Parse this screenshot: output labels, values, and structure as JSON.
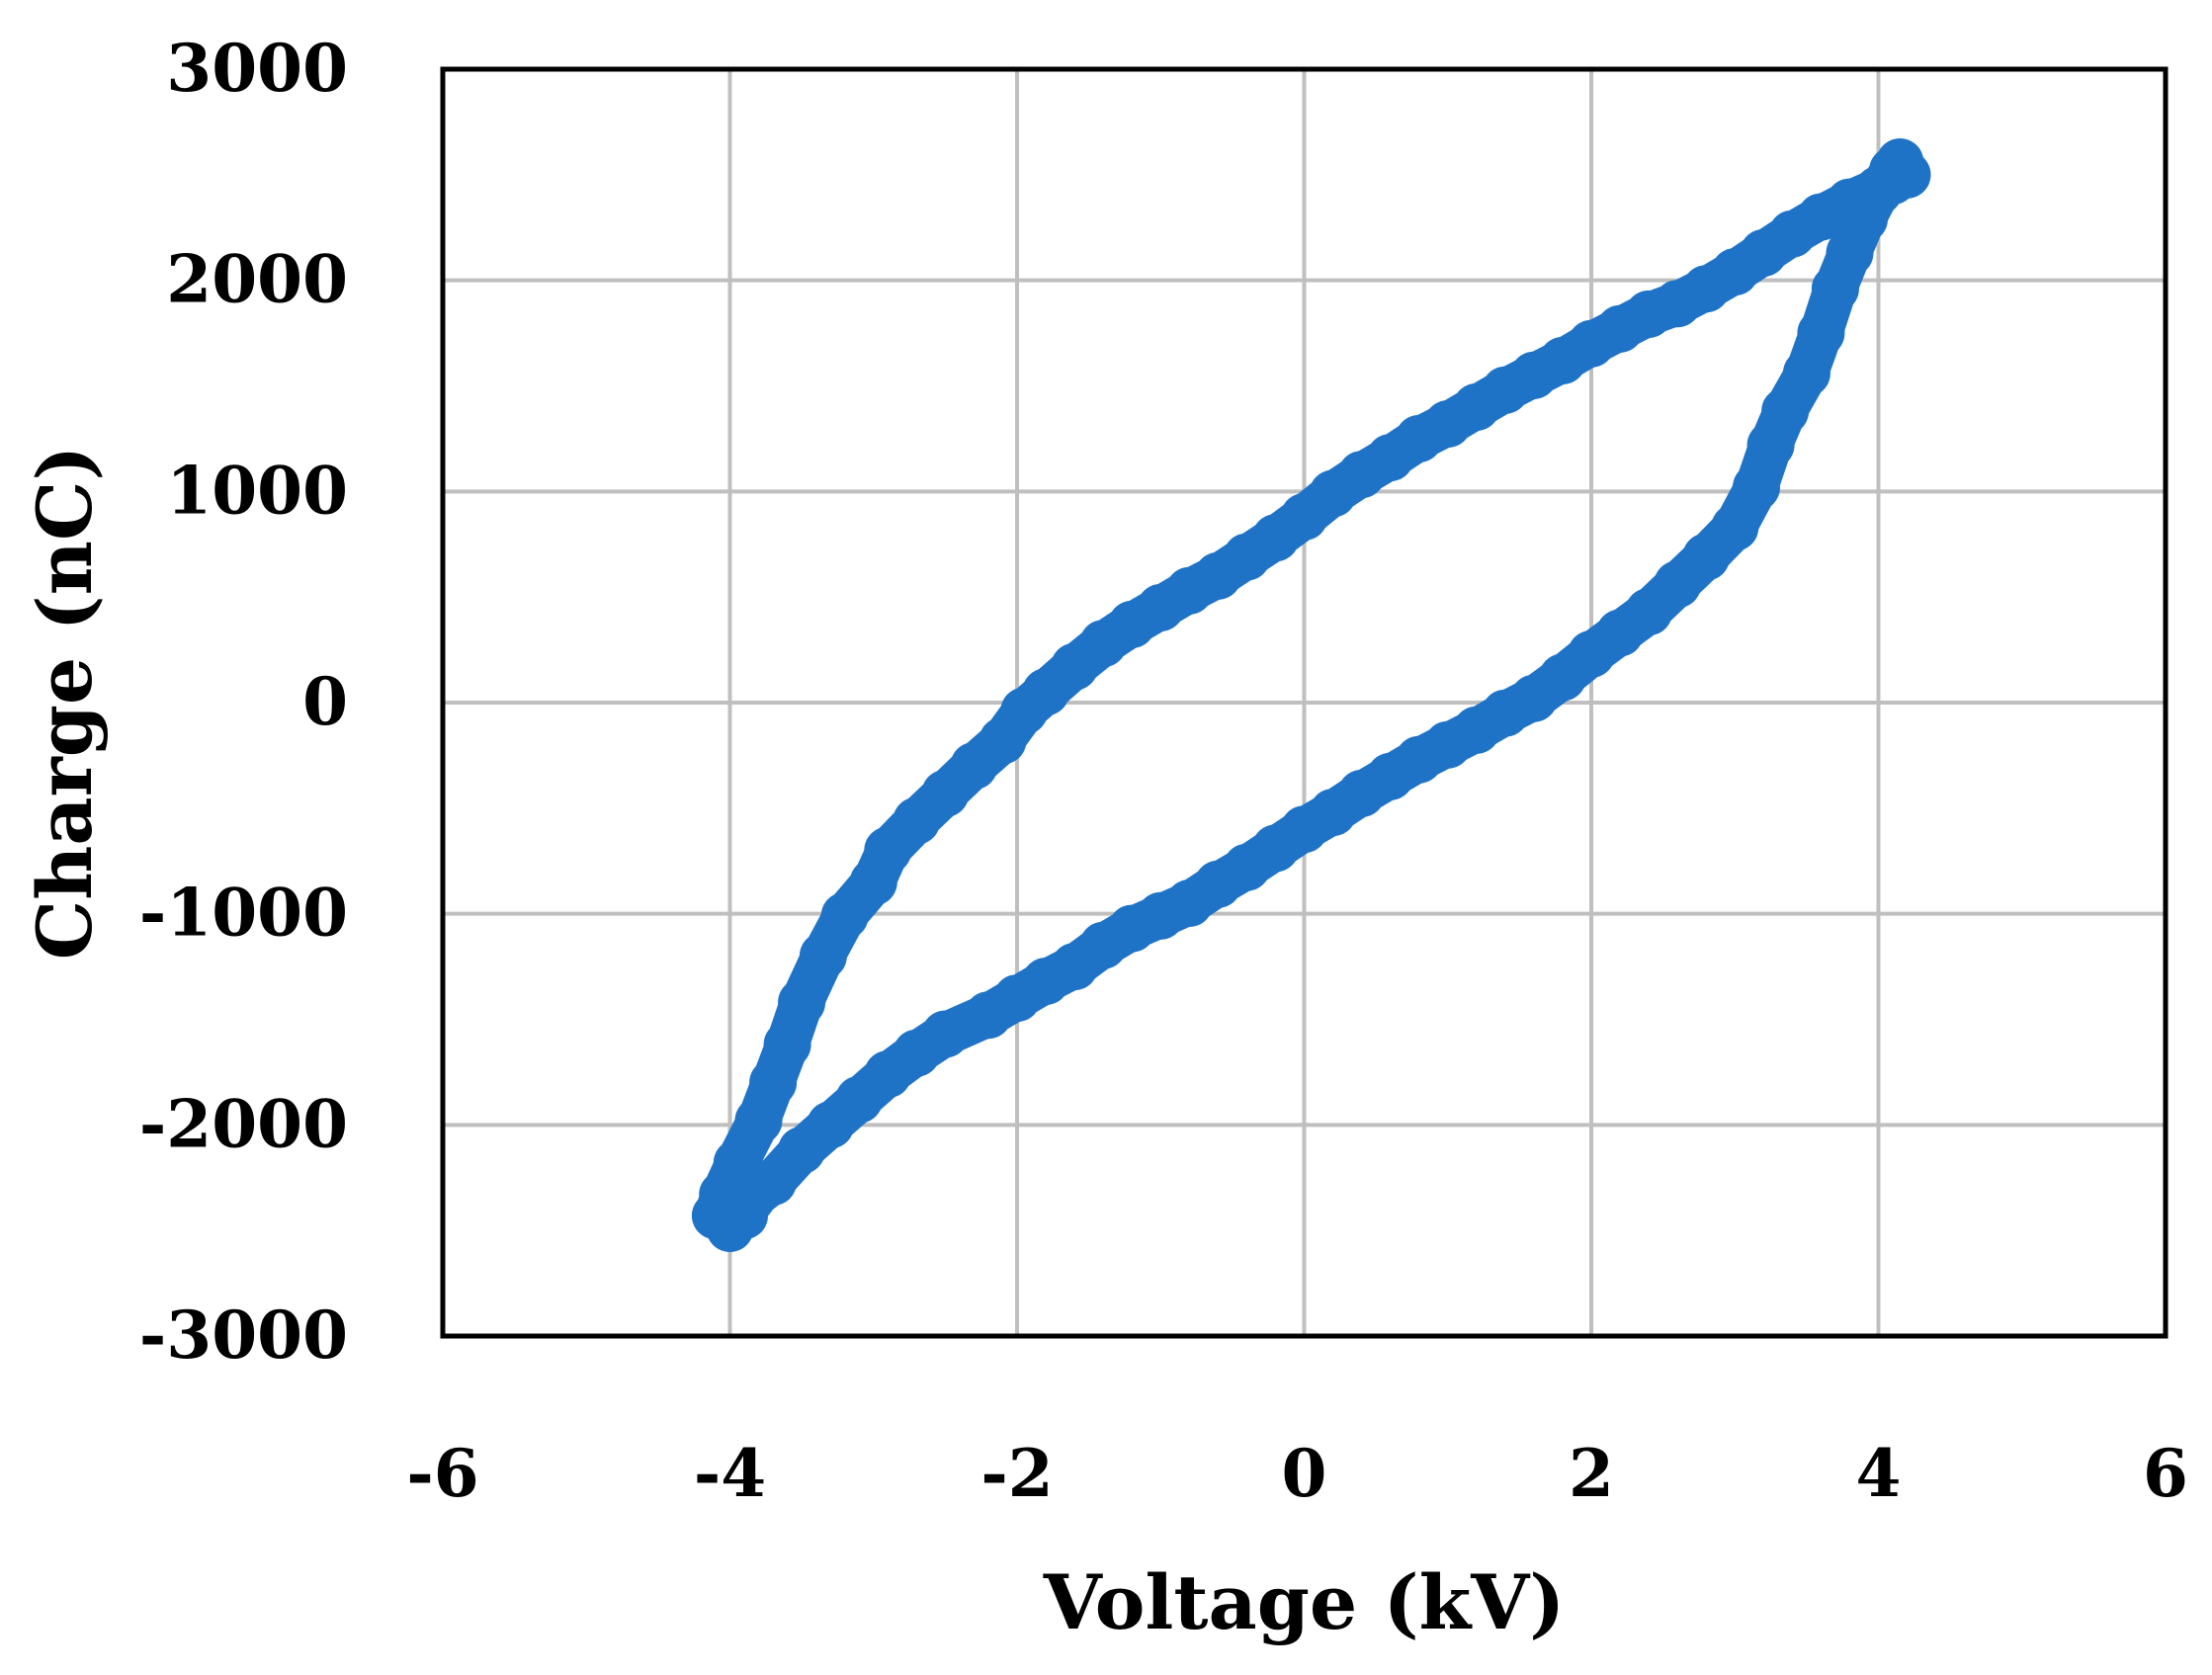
{
  "chart_data": {
    "type": "scatter",
    "xlabel": "Voltage (kV)",
    "ylabel": "Charge (nC)",
    "xlim": [
      -6,
      6
    ],
    "ylim": [
      -3000,
      3000
    ],
    "x_ticks": [
      -6,
      -4,
      -2,
      0,
      2,
      4,
      6
    ],
    "y_ticks": [
      -3000,
      -2000,
      -1000,
      0,
      1000,
      2000,
      3000
    ],
    "grid": true,
    "legend": "none",
    "series": [
      {
        "color": "#1f73c7",
        "marker": "circle",
        "points": [
          [
            -4.1,
            -2430
          ],
          [
            -4.0,
            -2490
          ],
          [
            -3.9,
            -2430
          ],
          [
            -3.85,
            -2350
          ],
          [
            -3.7,
            -2270
          ],
          [
            -3.5,
            -2120
          ],
          [
            -3.3,
            -2000
          ],
          [
            -3.1,
            -1880
          ],
          [
            -2.9,
            -1760
          ],
          [
            -2.7,
            -1660
          ],
          [
            -2.5,
            -1570
          ],
          [
            -2.2,
            -1480
          ],
          [
            -2.0,
            -1400
          ],
          [
            -1.8,
            -1320
          ],
          [
            -1.6,
            -1250
          ],
          [
            -1.4,
            -1150
          ],
          [
            -1.2,
            -1070
          ],
          [
            -1.0,
            -1010
          ],
          [
            -0.8,
            -950
          ],
          [
            -0.6,
            -860
          ],
          [
            -0.4,
            -780
          ],
          [
            -0.2,
            -690
          ],
          [
            0.0,
            -600
          ],
          [
            0.2,
            -520
          ],
          [
            0.4,
            -430
          ],
          [
            0.6,
            -350
          ],
          [
            0.8,
            -270
          ],
          [
            1.0,
            -200
          ],
          [
            1.2,
            -130
          ],
          [
            1.4,
            -50
          ],
          [
            1.6,
            20
          ],
          [
            1.8,
            120
          ],
          [
            2.0,
            230
          ],
          [
            2.2,
            330
          ],
          [
            2.4,
            430
          ],
          [
            2.6,
            560
          ],
          [
            2.8,
            690
          ],
          [
            3.0,
            830
          ],
          [
            3.15,
            1020
          ],
          [
            3.25,
            1220
          ],
          [
            3.35,
            1380
          ],
          [
            3.5,
            1560
          ],
          [
            3.6,
            1750
          ],
          [
            3.7,
            1960
          ],
          [
            3.8,
            2130
          ],
          [
            3.9,
            2290
          ],
          [
            4.0,
            2420
          ],
          [
            4.1,
            2520
          ],
          [
            4.15,
            2560
          ],
          [
            4.2,
            2500
          ],
          [
            4.1,
            2470
          ],
          [
            4.0,
            2430
          ],
          [
            3.8,
            2370
          ],
          [
            3.6,
            2300
          ],
          [
            3.4,
            2220
          ],
          [
            3.2,
            2130
          ],
          [
            3.0,
            2040
          ],
          [
            2.8,
            1960
          ],
          [
            2.6,
            1890
          ],
          [
            2.4,
            1840
          ],
          [
            2.2,
            1770
          ],
          [
            2.0,
            1700
          ],
          [
            1.8,
            1620
          ],
          [
            1.6,
            1550
          ],
          [
            1.4,
            1480
          ],
          [
            1.2,
            1400
          ],
          [
            1.0,
            1320
          ],
          [
            0.8,
            1250
          ],
          [
            0.6,
            1160
          ],
          [
            0.4,
            1080
          ],
          [
            0.2,
            990
          ],
          [
            0.0,
            880
          ],
          [
            -0.2,
            780
          ],
          [
            -0.4,
            690
          ],
          [
            -0.6,
            600
          ],
          [
            -0.8,
            530
          ],
          [
            -1.0,
            450
          ],
          [
            -1.2,
            370
          ],
          [
            -1.4,
            280
          ],
          [
            -1.6,
            170
          ],
          [
            -1.8,
            50
          ],
          [
            -1.95,
            -40
          ],
          [
            -2.1,
            -180
          ],
          [
            -2.3,
            -300
          ],
          [
            -2.5,
            -430
          ],
          [
            -2.7,
            -560
          ],
          [
            -2.9,
            -700
          ],
          [
            -3.0,
            -850
          ],
          [
            -3.2,
            -1010
          ],
          [
            -3.35,
            -1200
          ],
          [
            -3.5,
            -1420
          ],
          [
            -3.6,
            -1620
          ],
          [
            -3.7,
            -1800
          ],
          [
            -3.8,
            -1980
          ],
          [
            -3.95,
            -2180
          ],
          [
            -4.05,
            -2330
          ],
          [
            -4.1,
            -2430
          ]
        ]
      }
    ]
  }
}
